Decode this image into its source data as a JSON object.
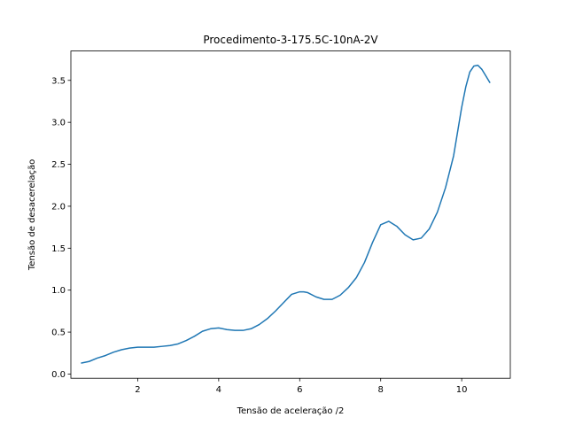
{
  "chart_data": {
    "type": "line",
    "title": "Procedimento-3-175.5C-10nA-2V",
    "xlabel": "Tensão de aceleração /2",
    "ylabel": "Tensão de desacerelação",
    "xlim": [
      0.35,
      11.2
    ],
    "ylim": [
      -0.05,
      3.85
    ],
    "xticks": [
      2,
      4,
      6,
      8,
      10
    ],
    "xtick_labels": [
      "2",
      "4",
      "6",
      "8",
      "10"
    ],
    "yticks": [
      0.0,
      0.5,
      1.0,
      1.5,
      2.0,
      2.5,
      3.0,
      3.5
    ],
    "ytick_labels": [
      "0.0",
      "0.5",
      "1.0",
      "1.5",
      "2.0",
      "2.5",
      "3.0",
      "3.5"
    ],
    "grid": false,
    "series": [
      {
        "color": "#1f77b4",
        "x": [
          0.6,
          0.8,
          1.0,
          1.2,
          1.4,
          1.6,
          1.8,
          2.0,
          2.2,
          2.4,
          2.6,
          2.8,
          3.0,
          3.2,
          3.4,
          3.6,
          3.8,
          4.0,
          4.2,
          4.4,
          4.6,
          4.8,
          5.0,
          5.2,
          5.4,
          5.6,
          5.8,
          6.0,
          6.1,
          6.2,
          6.4,
          6.6,
          6.8,
          7.0,
          7.2,
          7.4,
          7.6,
          7.8,
          8.0,
          8.2,
          8.4,
          8.6,
          8.8,
          9.0,
          9.2,
          9.4,
          9.6,
          9.8,
          10.0,
          10.1,
          10.2,
          10.3,
          10.4,
          10.5,
          10.6,
          10.7
        ],
        "y": [
          0.13,
          0.15,
          0.19,
          0.22,
          0.26,
          0.29,
          0.31,
          0.32,
          0.32,
          0.32,
          0.33,
          0.34,
          0.36,
          0.4,
          0.45,
          0.51,
          0.54,
          0.55,
          0.53,
          0.52,
          0.52,
          0.54,
          0.59,
          0.66,
          0.75,
          0.85,
          0.95,
          0.98,
          0.98,
          0.97,
          0.92,
          0.89,
          0.89,
          0.94,
          1.03,
          1.15,
          1.33,
          1.57,
          1.78,
          1.82,
          1.76,
          1.66,
          1.6,
          1.62,
          1.73,
          1.93,
          2.22,
          2.6,
          3.18,
          3.42,
          3.6,
          3.67,
          3.68,
          3.63,
          3.55,
          3.47
        ]
      }
    ]
  }
}
